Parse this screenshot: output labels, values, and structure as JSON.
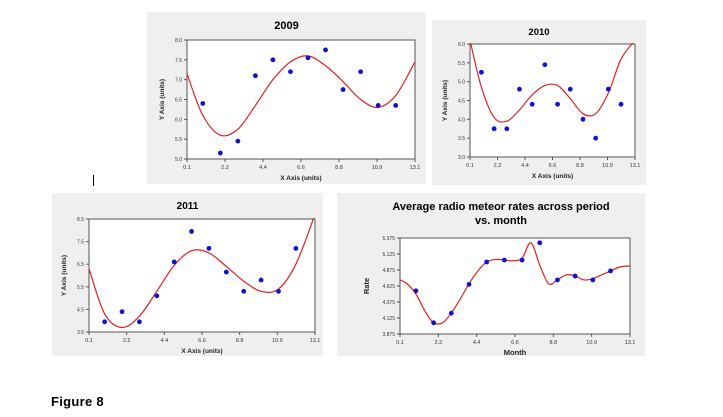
{
  "caption": "Figure 8",
  "colors": {
    "panel_bg": "#efefef",
    "plot_bg": "#ffffff",
    "fit_line": "#e02020",
    "points": "#1010d0",
    "axis": "#555555"
  },
  "chart_data": [
    {
      "type": "scatter",
      "title": "2009",
      "xlabel": "X Axis (units)",
      "ylabel": "Y Axis (units)",
      "xlim": [
        0.1,
        13.1
      ],
      "ylim": [
        5.0,
        8.0
      ],
      "xticks": [
        "0.1",
        "2.2",
        "4.4",
        "6.6",
        "8.8",
        "10.9",
        "13.1"
      ],
      "yticks": [
        "5.0",
        "5.5",
        "6.0",
        "6.5",
        "7.0",
        "7.5",
        "8.0"
      ],
      "grid": false,
      "legend": "none",
      "series": [
        {
          "kind": "points",
          "x": [
            1.0,
            2.0,
            3.0,
            4.0,
            5.0,
            6.0,
            7.0,
            8.0,
            9.0,
            10.0,
            11.0,
            12.0
          ],
          "y": [
            6.4,
            5.15,
            5.45,
            7.1,
            7.5,
            7.2,
            7.55,
            7.75,
            6.75,
            7.2,
            6.35,
            6.35
          ]
        },
        {
          "kind": "fit",
          "x": [
            0.1,
            1.0,
            2.0,
            3.0,
            4.0,
            5.0,
            6.0,
            7.0,
            8.0,
            9.0,
            10.0,
            11.0,
            12.0,
            13.1
          ],
          "y": [
            7.15,
            6.1,
            5.6,
            5.75,
            6.35,
            7.0,
            7.45,
            7.6,
            7.35,
            6.95,
            6.5,
            6.3,
            6.6,
            7.45
          ]
        }
      ]
    },
    {
      "type": "scatter",
      "title": "2010",
      "xlabel": "X Axis (units)",
      "ylabel": "Y Axis (units)",
      "xlim": [
        0.1,
        13.1
      ],
      "ylim": [
        3.0,
        6.0
      ],
      "xticks": [
        "0.1",
        "2.2",
        "4.4",
        "6.6",
        "8.8",
        "10.9",
        "13.1"
      ],
      "yticks": [
        "3.0",
        "3.5",
        "4.0",
        "4.5",
        "5.0",
        "5.5",
        "6.0"
      ],
      "grid": false,
      "legend": "none",
      "series": [
        {
          "kind": "points",
          "x": [
            1.0,
            2.0,
            3.0,
            4.0,
            5.0,
            6.0,
            7.0,
            8.0,
            9.0,
            10.0,
            11.0,
            12.0
          ],
          "y": [
            5.25,
            3.75,
            3.75,
            4.8,
            4.4,
            5.45,
            4.4,
            4.8,
            4.0,
            3.5,
            4.8,
            4.4
          ]
        },
        {
          "kind": "fit",
          "x": [
            0.1,
            1.0,
            2.0,
            3.0,
            4.0,
            5.0,
            6.0,
            7.0,
            8.0,
            9.0,
            10.0,
            11.0,
            12.0,
            13.1
          ],
          "y": [
            6.1,
            4.85,
            4.05,
            3.95,
            4.25,
            4.65,
            4.9,
            4.9,
            4.55,
            4.15,
            4.15,
            4.7,
            5.6,
            6.1
          ]
        }
      ]
    },
    {
      "type": "scatter",
      "title": "2011",
      "xlabel": "X Axis (units)",
      "ylabel": "Y Axis (units)",
      "xlim": [
        0.1,
        13.1
      ],
      "ylim": [
        3.5,
        8.5
      ],
      "xticks": [
        "0.1",
        "2.2",
        "4.4",
        "6.6",
        "8.8",
        "10.9",
        "13.1"
      ],
      "yticks": [
        "3.5",
        "4.5",
        "5.5",
        "6.5",
        "7.5",
        "8.5"
      ],
      "grid": false,
      "legend": "none",
      "series": [
        {
          "kind": "points",
          "x": [
            1.0,
            2.0,
            3.0,
            4.0,
            5.0,
            6.0,
            7.0,
            8.0,
            9.0,
            10.0,
            11.0,
            12.0
          ],
          "y": [
            3.95,
            4.4,
            3.95,
            5.1,
            6.6,
            7.95,
            7.2,
            6.15,
            5.3,
            5.8,
            5.3,
            7.2
          ]
        },
        {
          "kind": "fit",
          "x": [
            0.1,
            1.0,
            2.0,
            3.0,
            4.0,
            5.0,
            6.0,
            7.0,
            8.0,
            9.0,
            10.0,
            11.0,
            12.0,
            13.1
          ],
          "y": [
            6.3,
            4.3,
            3.7,
            4.2,
            5.3,
            6.45,
            7.1,
            7.0,
            6.4,
            5.75,
            5.3,
            5.4,
            6.5,
            8.7
          ]
        }
      ]
    },
    {
      "type": "line",
      "title": "Average radio meteor rates across period vs. month",
      "xlabel": "Month",
      "ylabel": "Rate",
      "xlim": [
        0.1,
        13.1
      ],
      "ylim": [
        3.875,
        5.375
      ],
      "xticks": [
        "0.1",
        "2.2",
        "4.4",
        "6.6",
        "8.8",
        "10.9",
        "13.1"
      ],
      "yticks": [
        "3.875",
        "4.125",
        "4.375",
        "4.625",
        "4.875",
        "5.125",
        "5.375"
      ],
      "grid": false,
      "legend": "none",
      "series": [
        {
          "kind": "points",
          "x": [
            1.0,
            2.0,
            3.0,
            4.0,
            5.0,
            6.0,
            7.0,
            8.0,
            9.0,
            10.0,
            11.0,
            12.0
          ],
          "y": [
            4.55,
            4.05,
            4.2,
            4.65,
            5.0,
            5.03,
            5.03,
            5.3,
            4.72,
            4.78,
            4.72,
            4.86
          ]
        },
        {
          "kind": "fit",
          "x": [
            0.1,
            0.5,
            1.0,
            1.5,
            2.0,
            2.5,
            3.0,
            3.5,
            4.0,
            4.5,
            5.0,
            5.5,
            6.0,
            6.5,
            7.0,
            7.5,
            8.0,
            8.5,
            9.0,
            9.5,
            10.0,
            10.5,
            11.0,
            11.5,
            12.0,
            12.5,
            13.1
          ],
          "y": [
            4.72,
            4.66,
            4.5,
            4.24,
            4.05,
            4.05,
            4.2,
            4.42,
            4.66,
            4.86,
            5.0,
            5.04,
            5.03,
            5.02,
            5.06,
            5.3,
            4.95,
            4.66,
            4.72,
            4.8,
            4.78,
            4.72,
            4.74,
            4.8,
            4.86,
            4.92,
            4.94
          ]
        }
      ]
    }
  ]
}
